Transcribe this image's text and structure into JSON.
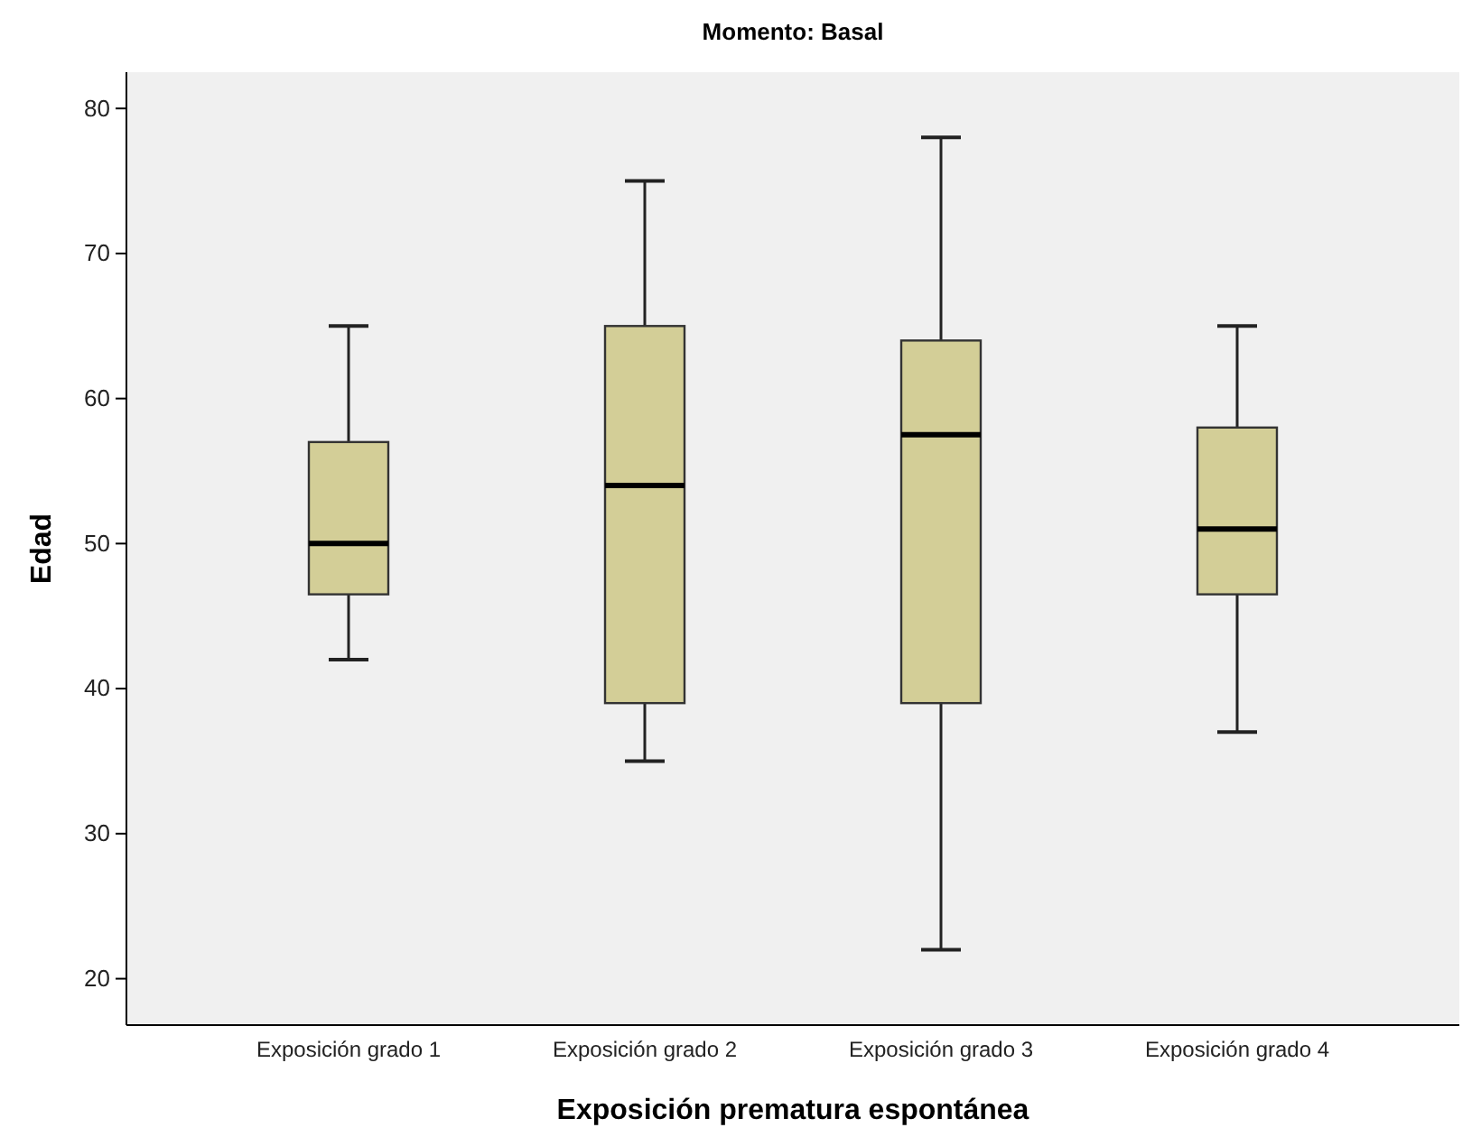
{
  "chart_data": {
    "type": "box",
    "title": "Momento: Basal",
    "xlabel": "Exposición prematura espontánea",
    "ylabel": "Edad",
    "categories": [
      "Exposición grado 1",
      "Exposición grado 2",
      "Exposición grado 3",
      "Exposición grado 4"
    ],
    "color": "#d3ce97",
    "ylim": [
      16.8,
      82.5
    ],
    "yticks": [
      20,
      30,
      40,
      50,
      60,
      70,
      80
    ],
    "grid": false,
    "boxes": [
      {
        "low": 42,
        "q1": 46.5,
        "median": 50,
        "q3": 57,
        "high": 65
      },
      {
        "low": 35,
        "q1": 39,
        "median": 54,
        "q3": 65,
        "high": 75
      },
      {
        "low": 22,
        "q1": 39,
        "median": 57.5,
        "q3": 64,
        "high": 78
      },
      {
        "low": 37,
        "q1": 46.5,
        "median": 51,
        "q3": 58,
        "high": 65
      }
    ]
  }
}
